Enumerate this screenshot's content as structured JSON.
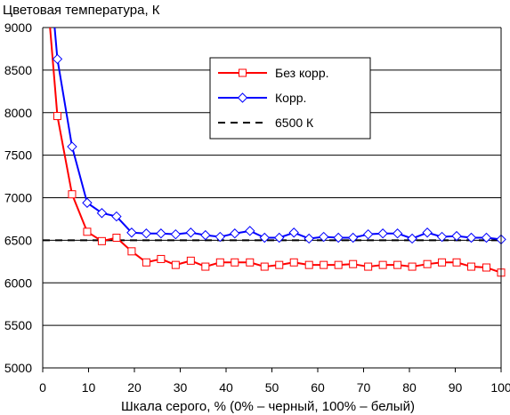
{
  "chart_data": {
    "type": "line",
    "title": "Цветовая температура, К",
    "xlabel": "Шкала серого, % (0% – черный, 100% – белый)",
    "ylabel": "",
    "xlim": [
      0,
      100
    ],
    "ylim": [
      5000,
      9000
    ],
    "x_ticks": [
      "0",
      "10",
      "20",
      "30",
      "40",
      "50",
      "60",
      "70",
      "80",
      "90",
      "100"
    ],
    "y_ticks": [
      "5000",
      "5500",
      "6000",
      "6500",
      "7000",
      "7500",
      "8000",
      "8500",
      "9000"
    ],
    "grid": "horizontal",
    "legend_position": "top-right",
    "x": [
      3.2,
      6.4,
      9.7,
      12.9,
      16.1,
      19.4,
      22.6,
      25.8,
      29.0,
      32.3,
      35.5,
      38.7,
      41.9,
      45.2,
      48.4,
      51.6,
      54.8,
      58.1,
      61.3,
      64.5,
      67.7,
      71.0,
      74.2,
      77.4,
      80.6,
      83.9,
      87.1,
      90.3,
      93.5,
      96.8,
      100.0
    ],
    "series": [
      {
        "name": "Без корр.",
        "color": "#ff0000",
        "marker": "square",
        "values": [
          7960,
          7040,
          6600,
          6490,
          6530,
          6370,
          6240,
          6280,
          6210,
          6260,
          6190,
          6240,
          6240,
          6240,
          6190,
          6210,
          6240,
          6210,
          6210,
          6210,
          6220,
          6190,
          6210,
          6210,
          6190,
          6220,
          6240,
          6240,
          6190,
          6180,
          6120
        ]
      },
      {
        "name": "Корр.",
        "color": "#0000ff",
        "marker": "diamond",
        "values": [
          8630,
          7600,
          6940,
          6820,
          6780,
          6590,
          6580,
          6580,
          6570,
          6590,
          6560,
          6540,
          6580,
          6610,
          6530,
          6530,
          6590,
          6520,
          6540,
          6530,
          6530,
          6570,
          6580,
          6580,
          6520,
          6590,
          6540,
          6550,
          6530,
          6530,
          6510
        ]
      }
    ],
    "series_lead_in": {
      "Без корр.": {
        "x": 1.6,
        "y": 9000
      },
      "Корр.": {
        "x": 2.6,
        "y": 9000
      }
    },
    "reference_line": {
      "name": "6500 К",
      "value": 6500,
      "style": "dashed",
      "color": "#000000"
    }
  }
}
